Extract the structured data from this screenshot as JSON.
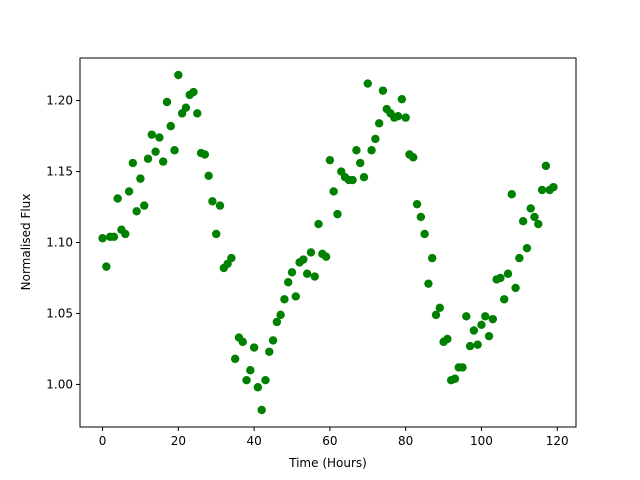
{
  "chart_data": {
    "type": "scatter",
    "xlabel": "Time (Hours)",
    "ylabel": "Normalised Flux",
    "color": "#008000",
    "x": [
      0,
      1,
      2,
      3,
      4,
      5,
      6,
      7,
      8,
      9,
      10,
      11,
      12,
      13,
      14,
      15,
      16,
      17,
      18,
      19,
      20,
      21,
      22,
      23,
      24,
      25,
      26,
      27,
      28,
      29,
      30,
      31,
      32,
      33,
      34,
      35,
      36,
      37,
      38,
      39,
      40,
      41,
      42,
      43,
      44,
      45,
      46,
      47,
      48,
      49,
      50,
      51,
      52,
      53,
      54,
      55,
      56,
      57,
      58,
      59,
      60,
      61,
      62,
      63,
      64,
      65,
      66,
      67,
      68,
      69,
      70,
      71,
      72,
      73,
      74,
      75,
      76,
      77,
      78,
      79,
      80,
      81,
      82,
      83,
      84,
      85,
      86,
      87,
      88,
      89,
      90,
      91,
      92,
      93,
      94,
      95,
      96,
      97,
      98,
      99,
      100,
      101,
      102,
      103,
      104,
      105,
      106,
      107,
      108,
      109,
      110,
      111,
      112,
      113,
      114,
      115,
      116,
      117,
      118,
      119
    ],
    "values": [
      1.103,
      1.083,
      1.104,
      1.104,
      1.131,
      1.109,
      1.106,
      1.136,
      1.156,
      1.122,
      1.145,
      1.126,
      1.159,
      1.176,
      1.164,
      1.174,
      1.157,
      1.199,
      1.182,
      1.165,
      1.218,
      1.191,
      1.195,
      1.204,
      1.206,
      1.191,
      1.163,
      1.162,
      1.147,
      1.129,
      1.106,
      1.126,
      1.082,
      1.085,
      1.089,
      1.018,
      1.033,
      1.03,
      1.003,
      1.01,
      1.026,
      0.998,
      0.982,
      1.003,
      1.023,
      1.031,
      1.044,
      1.049,
      1.06,
      1.072,
      1.079,
      1.062,
      1.086,
      1.088,
      1.078,
      1.093,
      1.076,
      1.113,
      1.092,
      1.09,
      1.158,
      1.136,
      1.12,
      1.15,
      1.146,
      1.144,
      1.144,
      1.165,
      1.156,
      1.146,
      1.212,
      1.165,
      1.173,
      1.184,
      1.207,
      1.194,
      1.191,
      1.188,
      1.189,
      1.201,
      1.188,
      1.162,
      1.16,
      1.127,
      1.118,
      1.106,
      1.071,
      1.089,
      1.049,
      1.054,
      1.03,
      1.032,
      1.003,
      1.004,
      1.012,
      1.012,
      1.048,
      1.027,
      1.038,
      1.028,
      1.042,
      1.048,
      1.034,
      1.046,
      1.074,
      1.075,
      1.06,
      1.078,
      1.134,
      1.068,
      1.089,
      1.115,
      1.096,
      1.124,
      1.118,
      1.113,
      1.137,
      1.154,
      1.137,
      1.139
    ],
    "xlim": [
      -5.95,
      124.95
    ],
    "ylim": [
      0.97,
      1.23
    ],
    "xticks": [
      0,
      20,
      40,
      60,
      80,
      100,
      120
    ],
    "yticks": [
      {
        "value": 1.0,
        "label": "1.00"
      },
      {
        "value": 1.05,
        "label": "1.05"
      },
      {
        "value": 1.1,
        "label": "1.10"
      },
      {
        "value": 1.15,
        "label": "1.15"
      },
      {
        "value": 1.2,
        "label": "1.20"
      }
    ]
  }
}
